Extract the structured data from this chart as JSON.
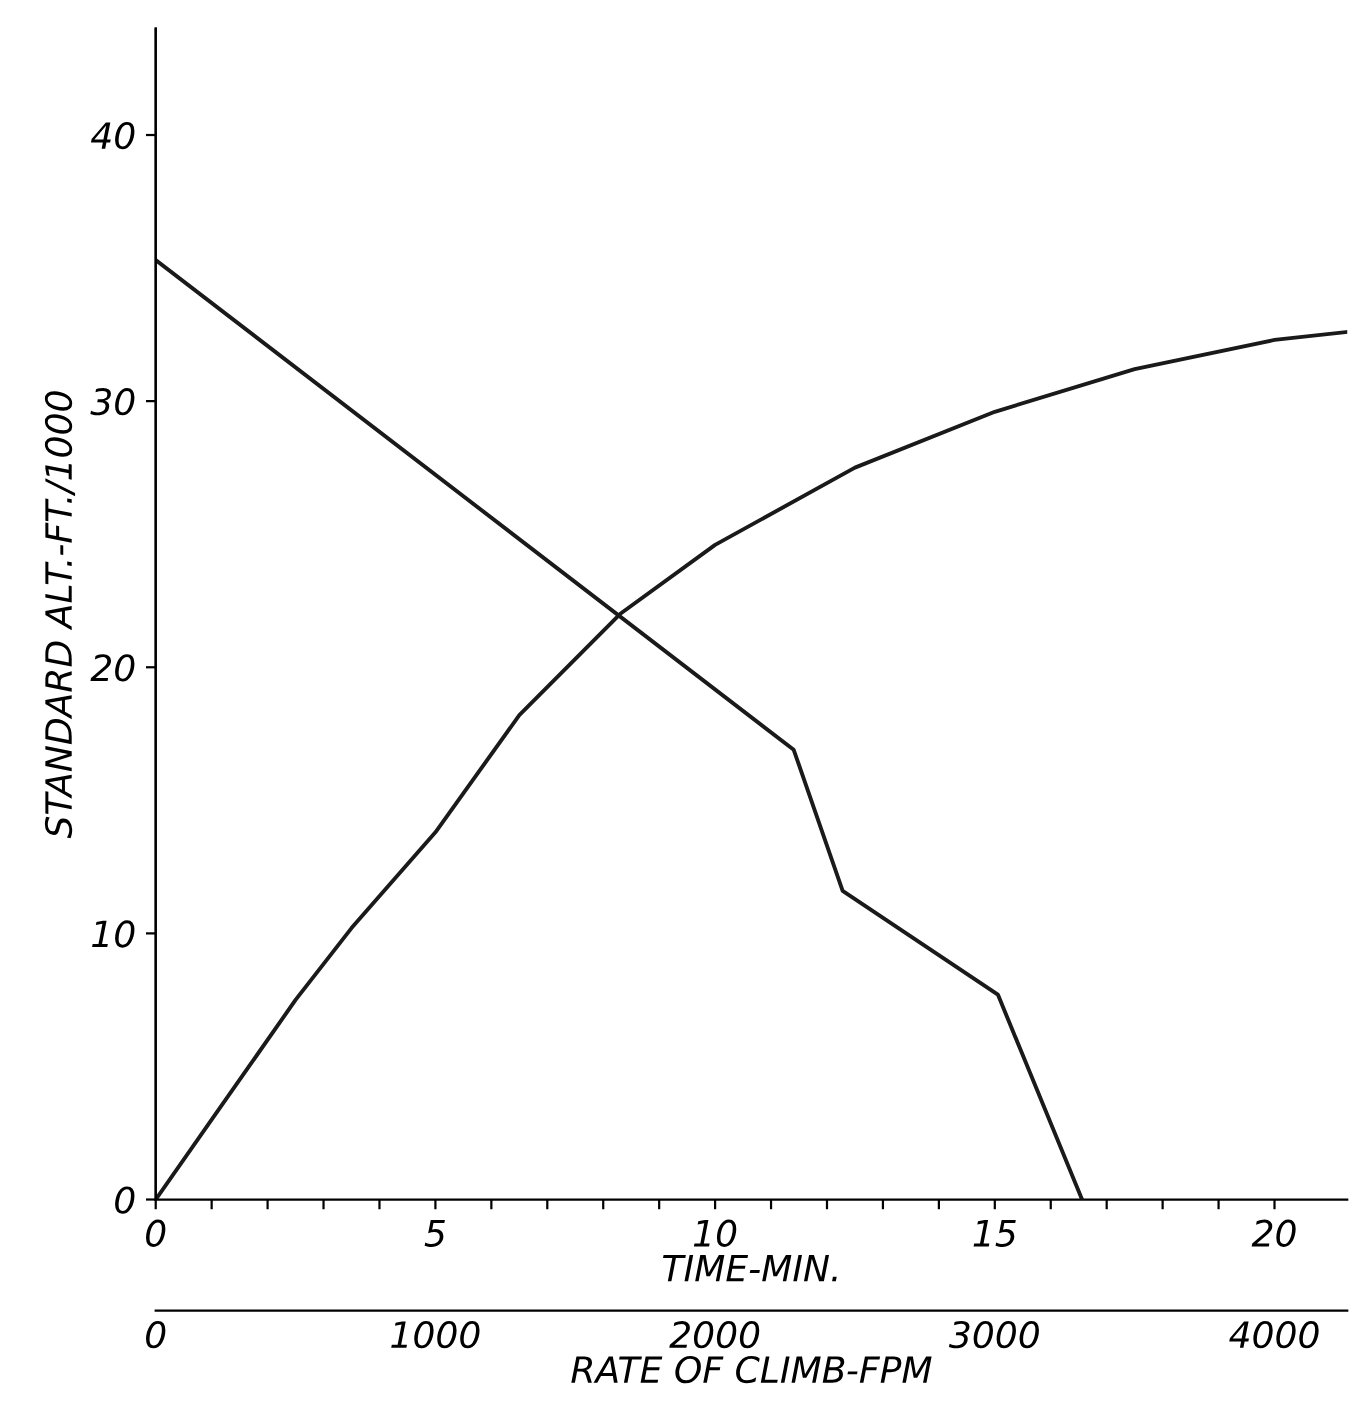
{
  "chart_data": {
    "type": "line",
    "xlabel": "TIME-MIN.",
    "x2label": "RATE OF CLIMB-FPM",
    "ylabel": "STANDARD ALT.-FT./1000",
    "xlim": [
      0,
      21.3
    ],
    "ylim": [
      0,
      44
    ],
    "x2lim": [
      0,
      4260
    ],
    "xticks": [
      0,
      {
        "value": 1,
        "label": null
      },
      {
        "value": 2,
        "label": null
      },
      {
        "value": 3,
        "label": null
      },
      {
        "value": 4,
        "label": null
      },
      5,
      {
        "value": 6,
        "label": null
      },
      {
        "value": 7,
        "label": null
      },
      {
        "value": 8,
        "label": null
      },
      {
        "value": 9,
        "label": null
      },
      10,
      {
        "value": 11,
        "label": null
      },
      {
        "value": 12,
        "label": null
      },
      {
        "value": 13,
        "label": null
      },
      {
        "value": 14,
        "label": null
      },
      15,
      {
        "value": 16,
        "label": null
      },
      {
        "value": 17,
        "label": null
      },
      {
        "value": 18,
        "label": null
      },
      {
        "value": 19,
        "label": null
      },
      20
    ],
    "x2ticks": [
      0,
      1000,
      2000,
      3000,
      4000
    ],
    "yticks": [
      0,
      10,
      20,
      30,
      40
    ],
    "series": [
      {
        "color": "#1a1a1a",
        "x": [
          0,
          1,
          2.5,
          3.5,
          5,
          6.5,
          8.3,
          10,
          12.5,
          15,
          17.5,
          20,
          21.3
        ],
        "values": [
          0,
          3.0,
          7.5,
          10.2,
          13.8,
          18.2,
          22.0,
          24.6,
          27.5,
          29.6,
          31.2,
          32.3,
          32.6
        ]
      },
      {
        "color": "#1a1a1a",
        "axis": "x2",
        "x": [
          0,
          2281,
          2456,
          3011,
          3312
        ],
        "values": [
          35.3,
          16.9,
          11.6,
          7.7,
          0
        ]
      }
    ],
    "grid": false,
    "marker": "none",
    "line_style": "solid",
    "legend": false
  }
}
